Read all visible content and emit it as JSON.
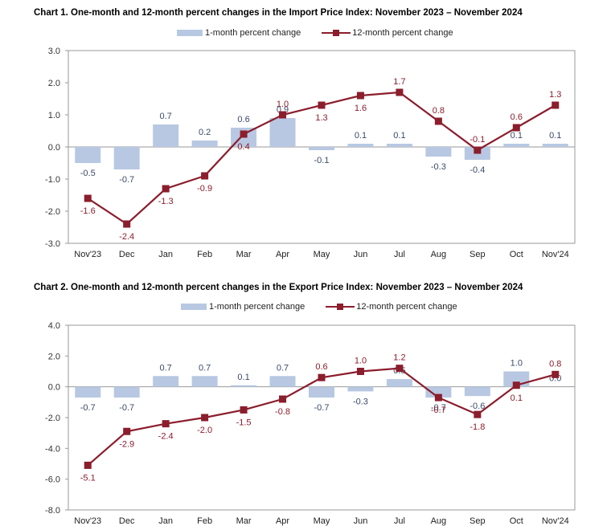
{
  "chart_data": [
    {
      "type": "bar+line",
      "title": "Chart 1. One-month and 12-month percent changes in the Import Price Index: November 2023 – November 2024",
      "legend": [
        "1-month percent change",
        "12-month percent change"
      ],
      "categories": [
        "Nov'23",
        "Dec",
        "Jan",
        "Feb",
        "Mar",
        "Apr",
        "May",
        "Jun",
        "Jul",
        "Aug",
        "Sep",
        "Oct",
        "Nov'24"
      ],
      "ylim": [
        -3.0,
        3.0
      ],
      "yticks": [
        "3.0",
        "2.0",
        "1.0",
        "0.0",
        "-1.0",
        "-2.0",
        "-3.0"
      ],
      "series": [
        {
          "name": "1-month percent change",
          "kind": "bar",
          "color": "#b8c8e2",
          "values": [
            -0.5,
            -0.7,
            0.7,
            0.2,
            0.6,
            0.9,
            -0.1,
            0.1,
            0.1,
            -0.3,
            -0.4,
            0.1,
            0.1
          ],
          "labels": [
            "-0.5",
            "-0.7",
            "0.7",
            "0.2",
            "0.6",
            "0.9",
            "-0.1",
            "0.1",
            "0.1",
            "-0.3",
            "-0.4",
            "0.1",
            "0.1"
          ]
        },
        {
          "name": "12-month percent change",
          "kind": "line",
          "color": "#8b1d2c",
          "values": [
            -1.6,
            -2.4,
            -1.3,
            -0.9,
            0.4,
            1.0,
            1.3,
            1.6,
            1.7,
            0.8,
            -0.1,
            0.6,
            1.3
          ],
          "labels": [
            "-1.6",
            "-2.4",
            "-1.3",
            "-0.9",
            "0.4",
            "1.0",
            "1.3",
            "1.6",
            "1.7",
            "0.8",
            "-0.1",
            "0.6",
            "1.3"
          ]
        }
      ]
    },
    {
      "type": "bar+line",
      "title": "Chart 2. One-month and 12-month percent changes in the Export Price Index: November 2023 – November 2024",
      "legend": [
        "1-month percent change",
        "12-month percent change"
      ],
      "categories": [
        "Nov'23",
        "Dec",
        "Jan",
        "Feb",
        "Mar",
        "Apr",
        "May",
        "Jun",
        "Jul",
        "Aug",
        "Sep",
        "Oct",
        "Nov'24"
      ],
      "ylim": [
        -8.0,
        4.0
      ],
      "yticks": [
        "4.0",
        "2.0",
        "0.0",
        "-2.0",
        "-4.0",
        "-6.0",
        "-8.0"
      ],
      "series": [
        {
          "name": "1-month percent change",
          "kind": "bar",
          "color": "#b8c8e2",
          "values": [
            -0.7,
            -0.7,
            0.7,
            0.7,
            0.1,
            0.7,
            -0.7,
            -0.3,
            0.5,
            -0.7,
            -0.6,
            1.0,
            0.0
          ],
          "labels": [
            "-0.7",
            "-0.7",
            "0.7",
            "0.7",
            "0.1",
            "0.7",
            "-0.7",
            "-0.3",
            "0.5",
            "-0.7",
            "-0.6",
            "1.0",
            "0.0"
          ]
        },
        {
          "name": "12-month percent change",
          "kind": "line",
          "color": "#8b1d2c",
          "values": [
            -5.1,
            -2.9,
            -2.4,
            -2.0,
            -1.5,
            -0.8,
            0.6,
            1.0,
            1.2,
            -0.7,
            -1.8,
            0.1,
            0.8
          ],
          "labels": [
            "-5.1",
            "-2.9",
            "-2.4",
            "-2.0",
            "-1.5",
            "-0.8",
            "0.6",
            "1.0",
            "1.2",
            "-0.7",
            "-1.8",
            "0.1",
            "0.8"
          ]
        }
      ]
    }
  ]
}
